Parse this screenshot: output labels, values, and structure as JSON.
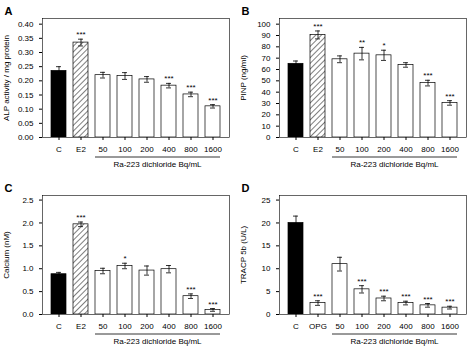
{
  "chart_data": [
    {
      "type": "bar",
      "title": "A",
      "ylabel": "ALP activity / mg protein",
      "xlabel": "Ra-223 dichloride Bq/mL",
      "categories": [
        "C",
        "E2",
        "50",
        "100",
        "200",
        "400",
        "800",
        "1600"
      ],
      "values": [
        0.235,
        0.335,
        0.22,
        0.217,
        0.205,
        0.183,
        0.152,
        0.11
      ],
      "errors": [
        0.015,
        0.012,
        0.01,
        0.012,
        0.01,
        0.008,
        0.008,
        0.006
      ],
      "colors": [
        "black",
        "hatch",
        "white",
        "white",
        "white",
        "white",
        "white",
        "white"
      ],
      "significance": [
        null,
        "***",
        null,
        null,
        null,
        "***",
        "***",
        "***"
      ],
      "ylim": [
        0.0,
        0.42
      ],
      "yticks": [
        {
          "value": 0.0,
          "label": "0.00"
        },
        0.05,
        {
          "value": 0.1,
          "label": "0.10"
        },
        0.15,
        {
          "value": 0.2,
          "label": "0.20"
        },
        0.25,
        {
          "value": 0.3,
          "label": "0.30"
        },
        0.35,
        {
          "value": 0.4,
          "label": "0.40"
        }
      ]
    },
    {
      "type": "bar",
      "title": "B",
      "ylabel": "PINP (ng/ml)",
      "xlabel": "Ra-223 dichloride Bq/mL",
      "categories": [
        "C",
        "E2",
        "50",
        "100",
        "200",
        "400",
        "800",
        "1600"
      ],
      "values": [
        65.0,
        90.5,
        69.0,
        74.0,
        72.5,
        64.0,
        48.0,
        30.5
      ],
      "errors": [
        2.5,
        3.5,
        3.0,
        5.5,
        4.5,
        2.0,
        2.5,
        2.0
      ],
      "colors": [
        "black",
        "hatch",
        "white",
        "white",
        "white",
        "white",
        "white",
        "white"
      ],
      "significance": [
        null,
        "***",
        null,
        "**",
        "*",
        null,
        "***",
        "***"
      ],
      "ylim": [
        0,
        105
      ],
      "yticks": [
        0,
        10,
        20,
        30,
        40,
        50,
        60,
        70,
        80,
        90,
        100
      ]
    },
    {
      "type": "bar",
      "title": "C",
      "ylabel": "Calcium (nM)",
      "xlabel": "Ra-223 dichloride Bq/mL",
      "categories": [
        "C",
        "E2",
        "50",
        "100",
        "200",
        "400",
        "800",
        "1600"
      ],
      "values": [
        0.88,
        1.97,
        0.95,
        1.06,
        0.96,
        0.99,
        0.4,
        0.1
      ],
      "errors": [
        0.04,
        0.05,
        0.06,
        0.06,
        0.1,
        0.08,
        0.05,
        0.03
      ],
      "colors": [
        "black",
        "hatch",
        "white",
        "white",
        "white",
        "white",
        "white",
        "white"
      ],
      "significance": [
        null,
        "***",
        null,
        "*",
        null,
        null,
        "***",
        "***"
      ],
      "ylim": [
        0.0,
        2.6
      ],
      "yticks": [
        {
          "value": 0.0,
          "label": "0.0"
        },
        0.5,
        {
          "value": 1.0,
          "label": "1.0"
        },
        1.5,
        {
          "value": 2.0,
          "label": "2.0"
        },
        2.5
      ]
    },
    {
      "type": "bar",
      "title": "D",
      "ylabel": "TRACP 5b (U/L)",
      "xlabel": "Ra-223 dichloride Bq/mL",
      "categories": [
        "C",
        "OPG",
        "50",
        "100",
        "200",
        "400",
        "800",
        "1600"
      ],
      "values": [
        20.0,
        2.5,
        11.0,
        5.5,
        3.5,
        2.5,
        2.0,
        1.5
      ],
      "errors": [
        1.5,
        0.5,
        1.5,
        0.8,
        0.5,
        0.4,
        0.4,
        0.3
      ],
      "colors": [
        "black",
        "white",
        "white",
        "white",
        "white",
        "white",
        "white",
        "white"
      ],
      "significance": [
        null,
        "***",
        null,
        "***",
        "***",
        "***",
        "***",
        "***"
      ],
      "ylim": [
        0,
        26
      ],
      "yticks": [
        0,
        5,
        10,
        15,
        20,
        25
      ]
    }
  ]
}
